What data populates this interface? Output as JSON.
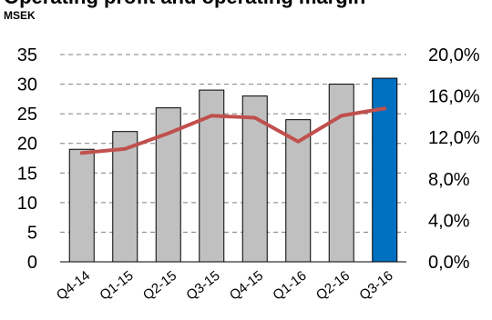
{
  "title": "Operating profit and operating margin",
  "unit_label": "MSEK",
  "chart_data": {
    "type": "bar",
    "categories": [
      "Q4-14",
      "Q1-15",
      "Q2-15",
      "Q3-15",
      "Q4-15",
      "Q1-16",
      "Q2-16",
      "Q3-16"
    ],
    "series": [
      {
        "type": "bar",
        "axis": "left",
        "values": [
          19,
          22,
          26,
          29,
          28,
          24,
          30,
          31
        ],
        "colors": [
          "#c0c0c0",
          "#c0c0c0",
          "#c0c0c0",
          "#c0c0c0",
          "#c0c0c0",
          "#c0c0c0",
          "#c0c0c0",
          "#0070c0"
        ]
      },
      {
        "type": "line",
        "axis": "right",
        "values": [
          10.5,
          10.9,
          12.4,
          14.1,
          13.9,
          11.6,
          14.1,
          14.8
        ],
        "color": "#c0504d"
      }
    ],
    "y_left": {
      "min": 0,
      "max": 35,
      "ticks": [
        "0",
        "5",
        "10",
        "15",
        "20",
        "25",
        "30",
        "35"
      ]
    },
    "y_right": {
      "min": 0,
      "max": 20,
      "ticks": [
        "0,0%",
        "4,0%",
        "8,0%",
        "12,0%",
        "16,0%",
        "20,0%"
      ]
    },
    "grid": "dashed-horizontal",
    "legend": "none"
  }
}
